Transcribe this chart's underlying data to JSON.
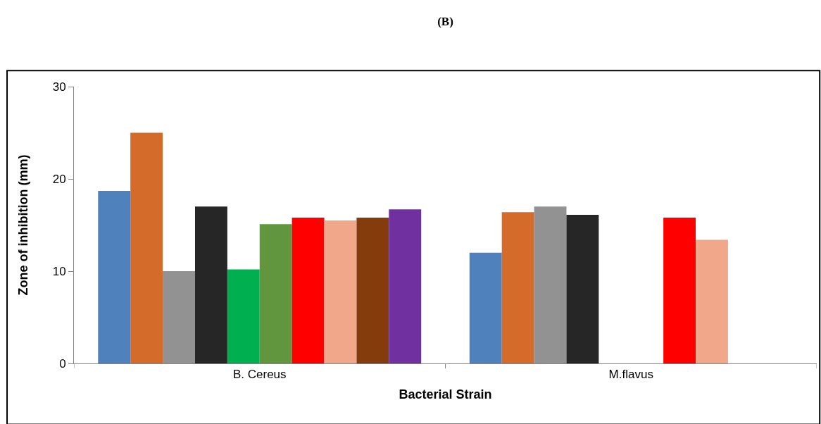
{
  "chart_data": {
    "type": "bar",
    "title": "(B)",
    "xlabel": "Bacterial Strain",
    "ylabel": "Zone of inhibition (mm)",
    "categories": [
      "B. Cereus",
      "M.flavus"
    ],
    "series": [
      {
        "color": "#4f81bd",
        "values": [
          18.7,
          12
        ]
      },
      {
        "color": "#d46b2a",
        "values": [
          25,
          16.4
        ]
      },
      {
        "color": "#929292",
        "values": [
          10,
          17
        ]
      },
      {
        "color": "#262626",
        "values": [
          17,
          16.1
        ]
      },
      {
        "color": "#00b050",
        "values": [
          10.2,
          null
        ]
      },
      {
        "color": "#62963e",
        "values": [
          15.1,
          null
        ]
      },
      {
        "color": "#ff0000",
        "values": [
          15.8,
          15.8
        ]
      },
      {
        "color": "#f1a78a",
        "values": [
          15.5,
          13.4
        ]
      },
      {
        "color": "#843c0c",
        "values": [
          15.8,
          null
        ]
      },
      {
        "color": "#7030a0",
        "values": [
          16.7,
          null
        ]
      }
    ],
    "ylim": [
      0,
      30
    ],
    "yticks": [
      0,
      10,
      20,
      30
    ],
    "grid": false
  }
}
